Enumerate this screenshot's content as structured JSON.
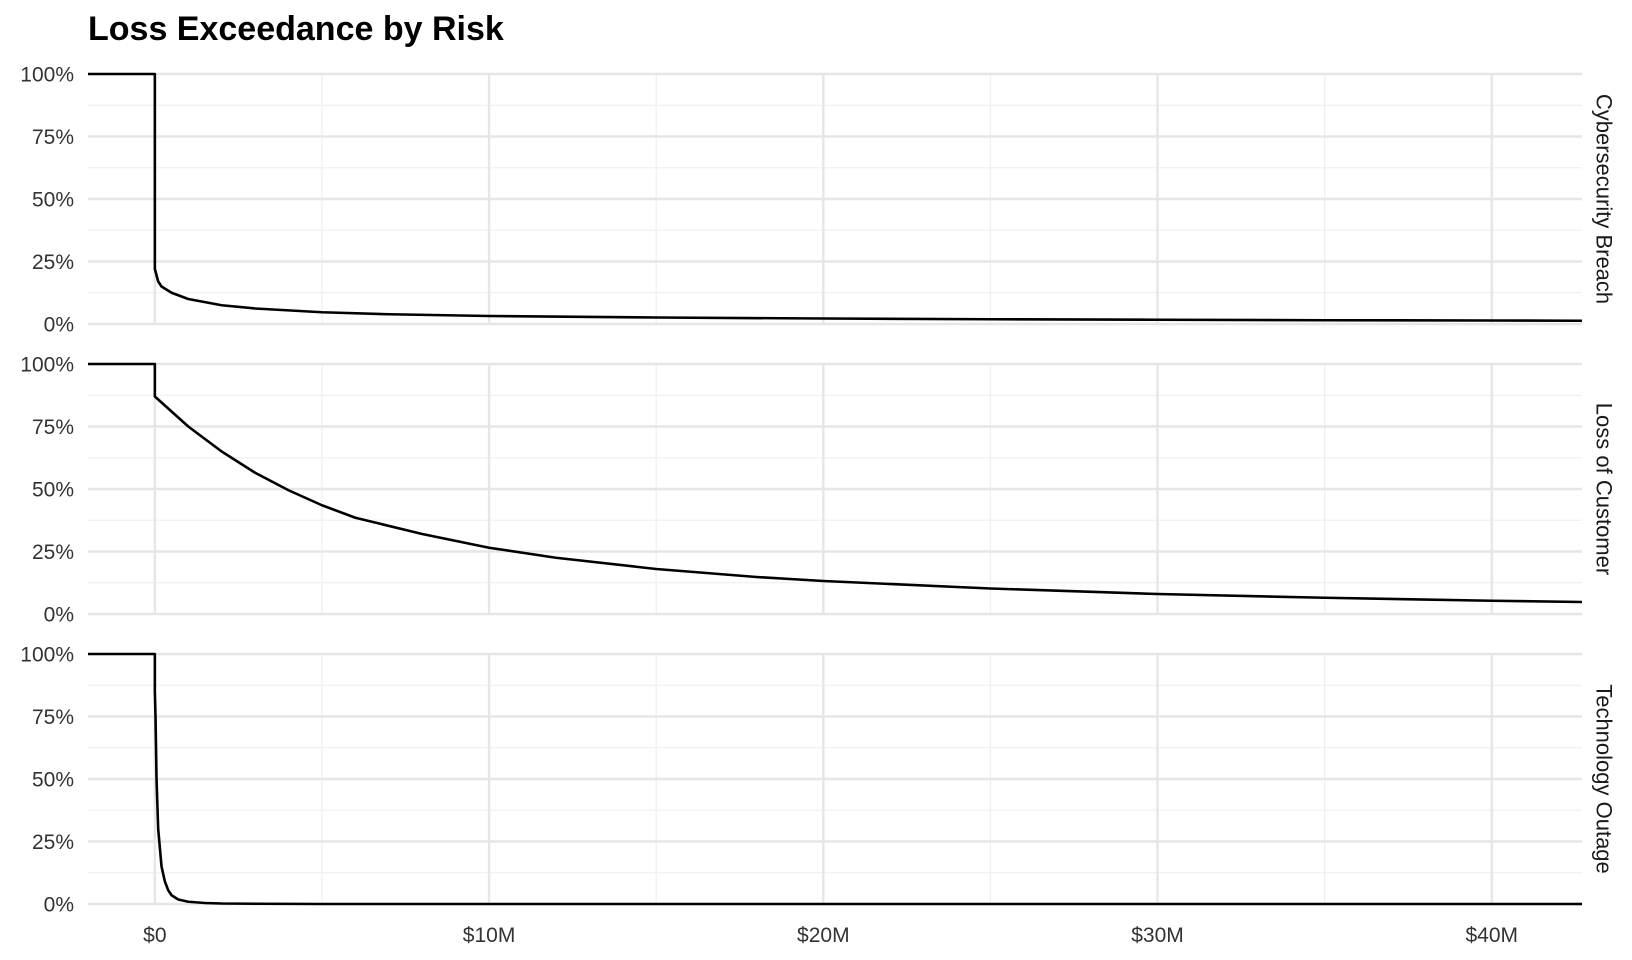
{
  "chart_data": {
    "type": "line",
    "title": "Loss Exceedance by Risk",
    "xlabel": "",
    "ylabel": "",
    "x_ticks": [
      {
        "value": 0,
        "label": "$0"
      },
      {
        "value": 10000000,
        "label": "$10M"
      },
      {
        "value": 20000000,
        "label": "$20M"
      },
      {
        "value": 30000000,
        "label": "$30M"
      },
      {
        "value": 40000000,
        "label": "$40M"
      }
    ],
    "y_ticks": [
      {
        "value": 0,
        "label": "0%"
      },
      {
        "value": 0.25,
        "label": "25%"
      },
      {
        "value": 0.5,
        "label": "50%"
      },
      {
        "value": 0.75,
        "label": "75%"
      },
      {
        "value": 1,
        "label": "100%"
      }
    ],
    "xlim": [
      -2000000,
      42700000
    ],
    "ylim": [
      0,
      1
    ],
    "grid": true,
    "facets": [
      {
        "name": "Cybersecurity Breach",
        "x": [
          -2000000,
          0,
          0,
          100000,
          200000,
          500000,
          1000000,
          2000000,
          3000000,
          5000000,
          7000000,
          10000000,
          15000000,
          20000000,
          25000000,
          30000000,
          35000000,
          40000000,
          42700000
        ],
        "y": [
          1,
          1,
          0.22,
          0.17,
          0.15,
          0.125,
          0.1,
          0.075,
          0.062,
          0.047,
          0.039,
          0.032,
          0.026,
          0.022,
          0.019,
          0.017,
          0.015,
          0.014,
          0.013
        ]
      },
      {
        "name": "Loss of Customer",
        "x": [
          -2000000,
          0,
          0,
          1000000,
          2000000,
          3000000,
          4000000,
          5000000,
          6000000,
          8000000,
          10000000,
          12000000,
          15000000,
          18000000,
          20000000,
          25000000,
          30000000,
          35000000,
          40000000,
          42700000
        ],
        "y": [
          1,
          1,
          0.87,
          0.75,
          0.65,
          0.565,
          0.495,
          0.435,
          0.385,
          0.32,
          0.265,
          0.225,
          0.18,
          0.148,
          0.132,
          0.102,
          0.08,
          0.065,
          0.053,
          0.048
        ]
      },
      {
        "name": "Technology Outage",
        "x": [
          -2000000,
          0,
          0,
          20000,
          50000,
          100000,
          200000,
          300000,
          400000,
          500000,
          700000,
          1000000,
          1500000,
          2000000,
          3000000,
          5000000,
          42700000
        ],
        "y": [
          1,
          1,
          0.85,
          0.75,
          0.5,
          0.3,
          0.15,
          0.09,
          0.055,
          0.035,
          0.018,
          0.009,
          0.004,
          0.002,
          0.001,
          0,
          0
        ]
      }
    ]
  }
}
